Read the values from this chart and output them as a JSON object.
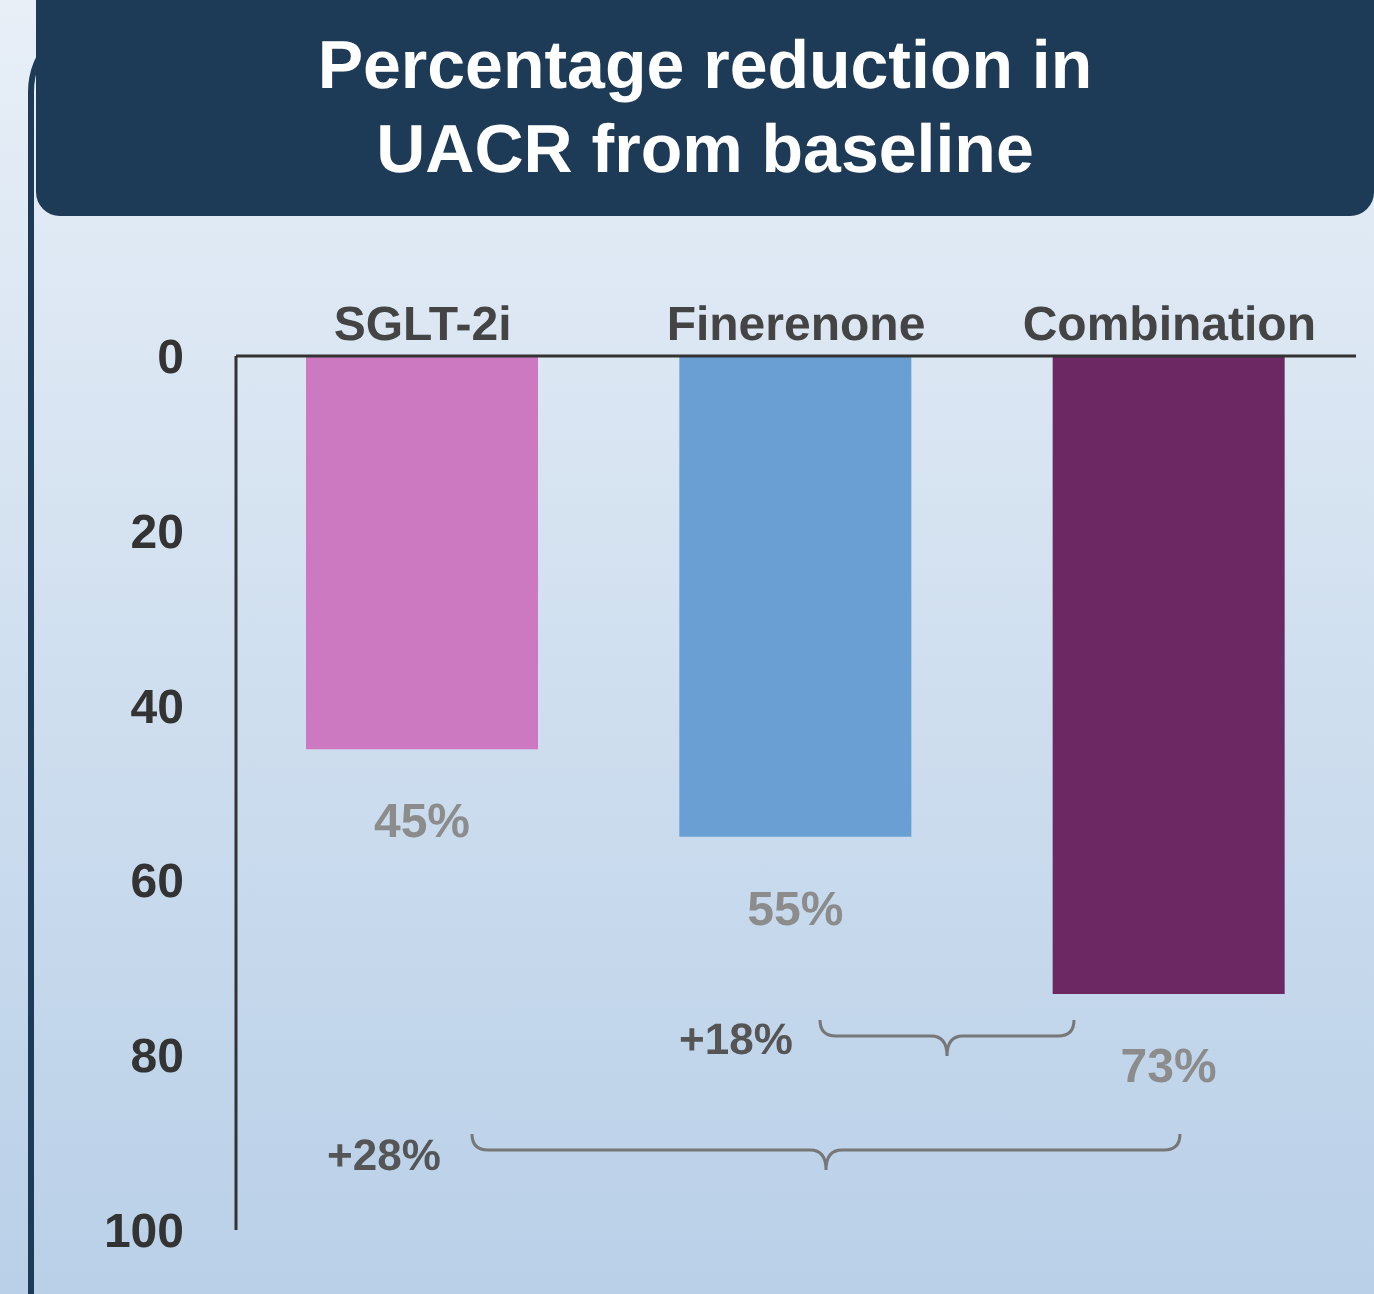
{
  "chart_data": {
    "type": "bar",
    "title": "Percentage reduction in UACR from baseline",
    "categories": [
      "SGLT-2i",
      "Finerenone",
      "Combination"
    ],
    "values": [
      45,
      55,
      73
    ],
    "colors": [
      "#cc79c2",
      "#6a9fd4",
      "#6b2862"
    ],
    "value_labels": [
      "45%",
      "55%",
      "73%"
    ],
    "ylim": [
      100,
      0
    ],
    "yticks": [
      0,
      20,
      40,
      60,
      80,
      100
    ],
    "annotations": [
      "+18%",
      "+28%"
    ]
  }
}
